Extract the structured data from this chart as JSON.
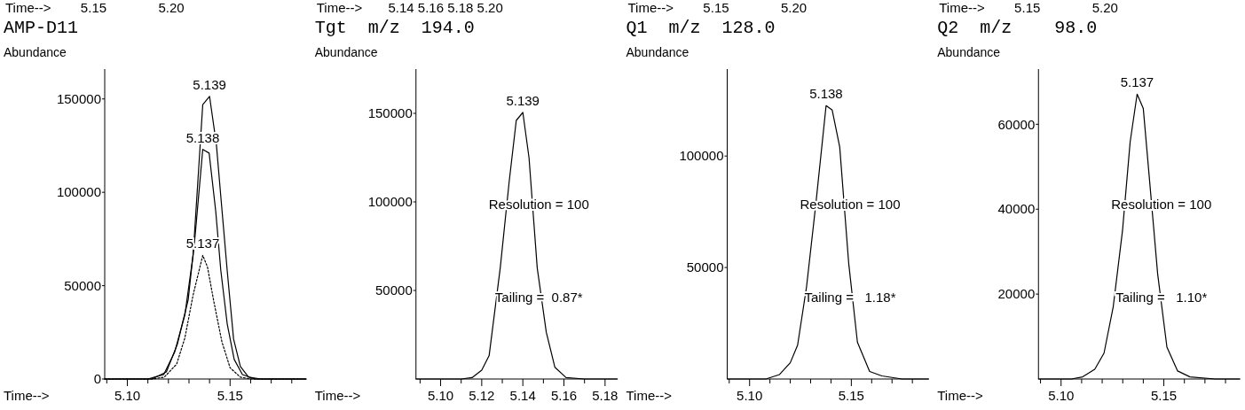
{
  "chart_data": [
    {
      "type": "line",
      "title": "AMP-D11",
      "ylabel": "Abundance",
      "xlabel": "Time-->",
      "annotations": [
        "Time-->        5.15              5.20",
        {
          "text": "5.139",
          "x": 5.14,
          "y": 151400
        },
        {
          "text": "5.138",
          "x": 5.1367,
          "y": 123000
        },
        {
          "text": "5.137",
          "x": 5.1367,
          "y": 66200
        }
      ],
      "xlim": [
        5.089,
        5.187
      ],
      "ylim": [
        0,
        166000
      ],
      "yticks": [
        0,
        50000,
        100000,
        150000
      ],
      "xticks": [
        {
          "value": 5.09,
          "label": null
        },
        {
          "value": 5.1,
          "label": "5.10"
        },
        {
          "value": 5.11,
          "label": null
        },
        {
          "value": 5.12,
          "label": null
        },
        {
          "value": 5.13,
          "label": null
        },
        {
          "value": 5.14,
          "label": null
        },
        5.15,
        {
          "value": 5.16,
          "label": null
        },
        {
          "value": 5.17,
          "label": null
        },
        {
          "value": 5.18,
          "label": null
        }
      ],
      "series": [
        {
          "color": "#000000",
          "line_style": "solid",
          "x": [
            5.089,
            5.11,
            5.1177,
            5.123,
            5.128,
            5.132,
            5.1345,
            5.1367,
            5.14,
            5.1433,
            5.1455,
            5.1486,
            5.1517,
            5.155,
            5.159,
            5.165,
            5.187
          ],
          "values": [
            0,
            0,
            2400,
            14300,
            34300,
            66200,
            109000,
            147000,
            151400,
            126000,
            97600,
            58000,
            21400,
            6700,
            1000,
            0,
            0
          ]
        },
        {
          "color": "#000000",
          "line_style": "solid",
          "x": [
            5.089,
            5.112,
            5.119,
            5.1243,
            5.1296,
            5.133,
            5.1367,
            5.1398,
            5.143,
            5.1455,
            5.1486,
            5.152,
            5.156,
            5.162,
            5.187
          ],
          "values": [
            0,
            0,
            3800,
            18500,
            42400,
            77000,
            123000,
            121000,
            90000,
            58000,
            29500,
            10500,
            2400,
            0,
            0
          ]
        },
        {
          "color": "#000000",
          "line_style": "dotted",
          "x": [
            5.089,
            5.112,
            5.118,
            5.124,
            5.128,
            5.132,
            5.1367,
            5.139,
            5.142,
            5.146,
            5.15,
            5.155,
            5.16,
            5.187
          ],
          "values": [
            0,
            0,
            1000,
            8000,
            22000,
            45000,
            66200,
            60000,
            42000,
            20000,
            6000,
            1000,
            0,
            0
          ]
        }
      ]
    },
    {
      "type": "line",
      "title": "Tgt  m/z  194.0",
      "ylabel": "Abundance",
      "xlabel": "Time-->",
      "annotations": [
        "Time-->       5.14 5.16 5.18 5.20",
        "Resolution = 100",
        "Tailing =  0.87*",
        {
          "text": "5.139",
          "x": 5.14,
          "y": 150500
        }
      ],
      "xlim": [
        5.088,
        5.186
      ],
      "ylim": [
        0,
        175000
      ],
      "yticks": [
        50000,
        100000,
        150000
      ],
      "xticks": [
        {
          "value": 5.09,
          "label": null
        },
        {
          "value": 5.1,
          "label": "5.10"
        },
        {
          "value": 5.11,
          "label": null
        },
        5.12,
        {
          "value": 5.13,
          "label": null
        },
        5.14,
        {
          "value": 5.15,
          "label": null
        },
        5.16,
        {
          "value": 5.17,
          "label": null
        },
        5.18
      ],
      "series": [
        {
          "color": "#000000",
          "line_style": "solid",
          "x": [
            5.088,
            5.11,
            5.1153,
            5.12,
            5.1236,
            5.129,
            5.1334,
            5.1368,
            5.14,
            5.143,
            5.147,
            5.1514,
            5.1556,
            5.161,
            5.17,
            5.186
          ],
          "values": [
            0,
            0,
            800,
            5000,
            13200,
            62700,
            112000,
            146000,
            150500,
            125000,
            62700,
            26400,
            6600,
            800,
            0,
            0
          ]
        }
      ]
    },
    {
      "type": "line",
      "title": "Q1  m/z  128.0",
      "ylabel": "Abundance",
      "xlabel": "Time-->",
      "annotations": [
        "Time-->        5.15              5.20",
        "Resolution = 100",
        "Tailing =   1.18*",
        {
          "text": "5.138",
          "x": 5.1376,
          "y": 122600
        }
      ],
      "xlim": [
        5.089,
        5.188
      ],
      "ylim": [
        0,
        139000
      ],
      "yticks": [
        50000,
        100000
      ],
      "xticks": [
        {
          "value": 5.09,
          "label": null
        },
        {
          "value": 5.1,
          "label": "5.10"
        },
        {
          "value": 5.11,
          "label": null
        },
        {
          "value": 5.12,
          "label": null
        },
        {
          "value": 5.13,
          "label": null
        },
        {
          "value": 5.14,
          "label": null
        },
        5.15,
        {
          "value": 5.16,
          "label": null
        },
        {
          "value": 5.17,
          "label": null
        },
        {
          "value": 5.18,
          "label": null
        }
      ],
      "series": [
        {
          "color": "#000000",
          "line_style": "solid",
          "x": [
            5.089,
            5.108,
            5.1147,
            5.12,
            5.1236,
            5.128,
            5.1325,
            5.1376,
            5.1406,
            5.1443,
            5.1487,
            5.153,
            5.159,
            5.165,
            5.175,
            5.188
          ],
          "values": [
            0,
            0,
            2000,
            7300,
            15200,
            41400,
            78000,
            122600,
            120600,
            104000,
            52000,
            16500,
            3400,
            1400,
            0,
            0
          ]
        }
      ]
    },
    {
      "type": "line",
      "title": "Q2  m/z    98.0",
      "ylabel": "Abundance",
      "xlabel": "Time-->",
      "annotations": [
        "Time-->        5.15              5.20",
        "Resolution = 100",
        "Tailing =   1.10*",
        {
          "text": "5.137",
          "x": 5.137,
          "y": 67100
        }
      ],
      "xlim": [
        5.089,
        5.187
      ],
      "ylim": [
        0,
        73000
      ],
      "yticks": [
        20000,
        40000,
        60000
      ],
      "xticks": [
        {
          "value": 5.09,
          "label": null
        },
        {
          "value": 5.1,
          "label": "5.10"
        },
        {
          "value": 5.11,
          "label": null
        },
        {
          "value": 5.12,
          "label": null
        },
        {
          "value": 5.13,
          "label": null
        },
        {
          "value": 5.14,
          "label": null
        },
        5.15,
        {
          "value": 5.16,
          "label": null
        },
        {
          "value": 5.17,
          "label": null
        },
        {
          "value": 5.18,
          "label": null
        }
      ],
      "series": [
        {
          "color": "#000000",
          "line_style": "solid",
          "x": [
            5.089,
            5.105,
            5.1105,
            5.1164,
            5.1209,
            5.1254,
            5.1299,
            5.1336,
            5.137,
            5.14,
            5.1433,
            5.147,
            5.1515,
            5.1567,
            5.1627,
            5.175,
            5.187
          ],
          "values": [
            0,
            0,
            500,
            2300,
            6100,
            17100,
            35000,
            55800,
            67100,
            63700,
            45400,
            24700,
            7500,
            1900,
            500,
            0,
            0
          ]
        }
      ]
    }
  ]
}
